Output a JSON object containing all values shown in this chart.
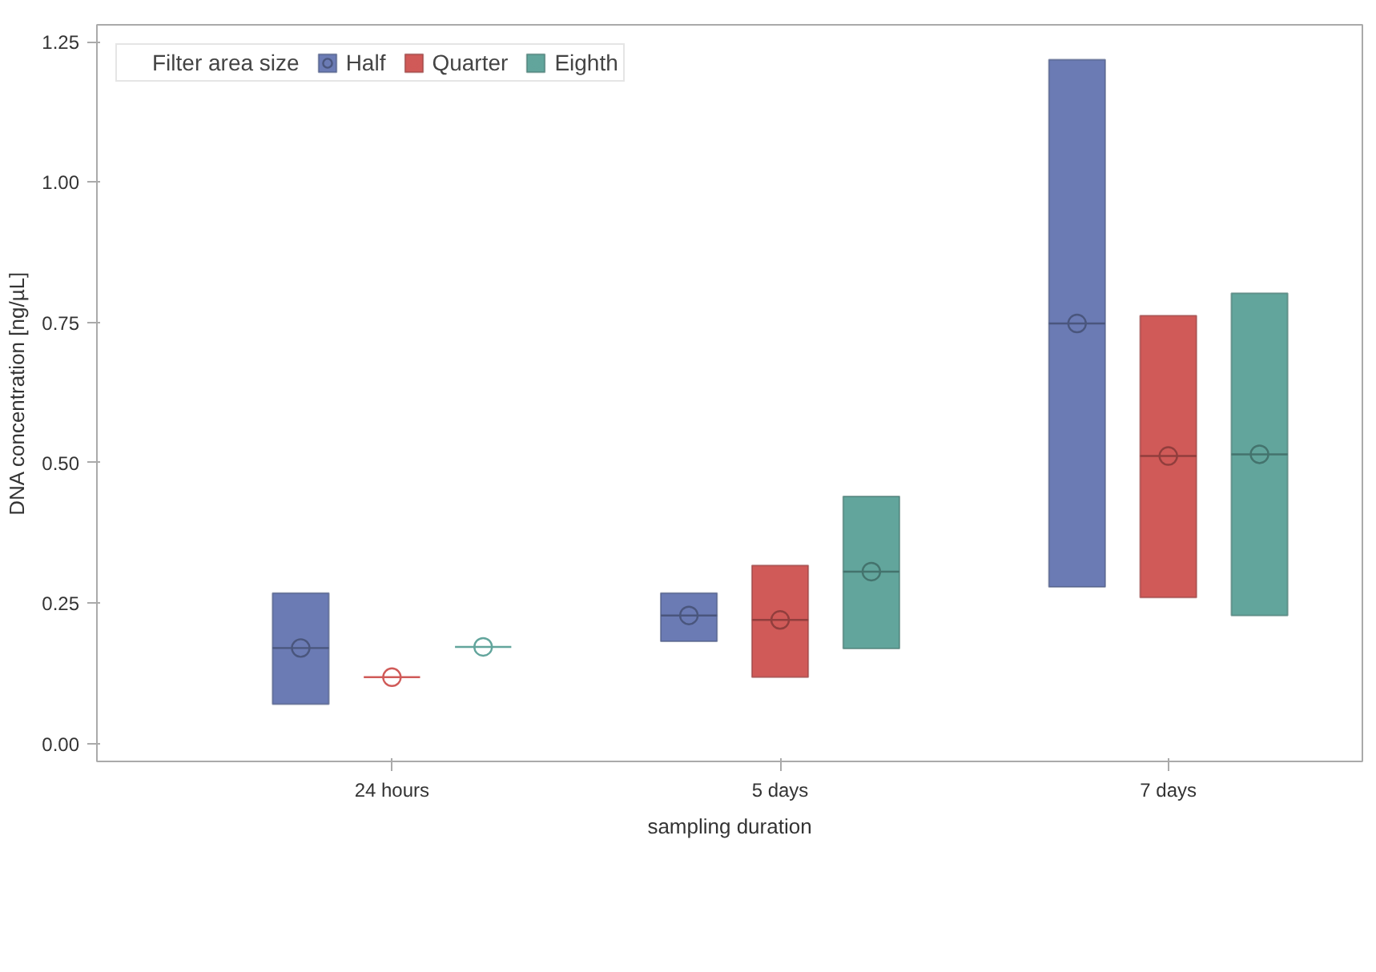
{
  "chart_data": {
    "type": "box",
    "xlabel": "sampling duration",
    "ylabel": "DNA concentration [ng/µL]",
    "legend_title": "Filter area size",
    "legend": "top left",
    "grid": false,
    "marker": "circle",
    "categories": [
      "24 hours",
      "5 days",
      "7 days"
    ],
    "ylim": [
      -0.032,
      1.28
    ],
    "yticks": [
      {
        "value": 0,
        "label": "0.00"
      },
      {
        "value": 0.25,
        "label": "0.25"
      },
      {
        "value": 0.5,
        "label": "0.50"
      },
      {
        "value": 0.75,
        "label": "0.75"
      },
      {
        "value": 1,
        "label": "1.00"
      },
      {
        "value": 1.25,
        "label": "1.25"
      }
    ],
    "series": [
      {
        "name": "Half",
        "color": "#6b7bb4",
        "boxes": [
          {
            "low": 0.07,
            "q1": 0.07,
            "median": 0.17,
            "q3": 0.268,
            "high": 0.268,
            "mean": 0.17
          },
          {
            "low": 0.182,
            "q1": 0.182,
            "median": 0.228,
            "q3": 0.268,
            "high": 0.268,
            "mean": 0.228
          },
          {
            "low": 0.279,
            "q1": 0.279,
            "median": 0.748,
            "q3": 1.218,
            "high": 1.218,
            "mean": 0.748
          }
        ]
      },
      {
        "name": "Quarter",
        "color": "#d05a58",
        "boxes": [
          {
            "low": 0.118,
            "q1": 0.118,
            "median": 0.118,
            "q3": 0.118,
            "high": 0.118,
            "mean": 0.118
          },
          {
            "low": 0.118,
            "q1": 0.118,
            "median": 0.22,
            "q3": 0.317,
            "high": 0.317,
            "mean": 0.22
          },
          {
            "low": 0.26,
            "q1": 0.26,
            "median": 0.512,
            "q3": 0.762,
            "high": 0.762,
            "mean": 0.512
          }
        ]
      },
      {
        "name": "Eighth",
        "color": "#62a59c",
        "boxes": [
          {
            "low": 0.172,
            "q1": 0.172,
            "median": 0.172,
            "q3": 0.172,
            "high": 0.172,
            "mean": 0.172
          },
          {
            "low": 0.169,
            "q1": 0.169,
            "median": 0.306,
            "q3": 0.44,
            "high": 0.44,
            "mean": 0.306
          },
          {
            "low": 0.228,
            "q1": 0.228,
            "median": 0.515,
            "q3": 0.802,
            "high": 0.802,
            "mean": 0.515
          }
        ]
      }
    ]
  }
}
